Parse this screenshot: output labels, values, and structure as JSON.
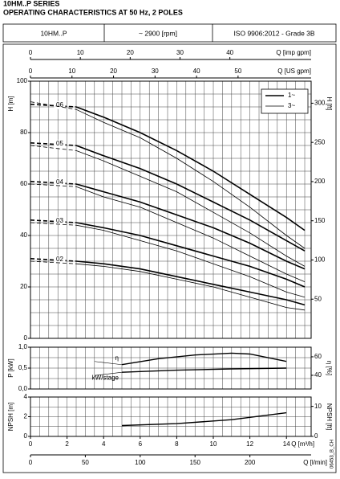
{
  "header": {
    "title": "10HM..P SERIES",
    "subtitle": "OPERATING CHARACTERISTICS AT 50 Hz, 2 POLES",
    "info": [
      "10HM..P",
      "~ 2900 [rpm]",
      "ISO 9906:2012 - Grade 3B"
    ],
    "code": "06453_B_CH"
  },
  "chart_data": [
    {
      "type": "line",
      "ylabel": "H [m]",
      "y2label": "H [ft]",
      "xlim": [
        0,
        15.35
      ],
      "ylim": [
        0,
        100
      ],
      "yticks": [
        0,
        20,
        40,
        60,
        80,
        100
      ],
      "y2lim": [
        0,
        328.1
      ],
      "y2ticks": [
        50,
        100,
        150,
        200,
        250,
        300
      ],
      "grid": true,
      "top_axes": [
        {
          "label": "Q [imp gpm]",
          "lim": [
            0,
            56.3
          ],
          "ticks": [
            0,
            10,
            20,
            30,
            40
          ]
        },
        {
          "label": "Q [US gpm]",
          "lim": [
            0,
            67.6
          ],
          "ticks": [
            0,
            10,
            20,
            30,
            40,
            50
          ]
        }
      ],
      "legend": {
        "corner": "upper right",
        "entries": [
          {
            "name": "1~",
            "width": 1.6
          },
          {
            "name": "3~",
            "width": 0.8
          }
        ]
      },
      "color": "#000000",
      "x": [
        0,
        2.5,
        4,
        6,
        8,
        10,
        12,
        14,
        15
      ],
      "series": [
        {
          "label": "06",
          "variant": "1~",
          "dashed_until": 2.5,
          "values": [
            91,
            90,
            86,
            80,
            73,
            65,
            56,
            47,
            42
          ]
        },
        {
          "label": "06",
          "variant": "3~",
          "dashed_until": 2.5,
          "values": [
            92,
            89,
            84,
            78,
            70,
            61,
            51,
            40,
            35
          ]
        },
        {
          "label": "05",
          "variant": "1~",
          "dashed_until": 2.5,
          "values": [
            76,
            75,
            71,
            66,
            60,
            53,
            46,
            38,
            34
          ]
        },
        {
          "label": "05",
          "variant": "3~",
          "dashed_until": 2.5,
          "values": [
            75,
            73,
            69,
            63,
            57,
            49,
            41,
            32,
            28
          ]
        },
        {
          "label": "04",
          "variant": "1~",
          "dashed_until": 2.5,
          "values": [
            61,
            60,
            57,
            53,
            48,
            43,
            37,
            30,
            27
          ]
        },
        {
          "label": "04",
          "variant": "3~",
          "dashed_until": 2.5,
          "values": [
            60,
            59,
            55,
            51,
            45,
            39,
            32,
            25,
            22
          ]
        },
        {
          "label": "03",
          "variant": "1~",
          "dashed_until": 2.5,
          "values": [
            46,
            45,
            43,
            40,
            36,
            32,
            28,
            23,
            20
          ]
        },
        {
          "label": "03",
          "variant": "3~",
          "dashed_until": 2.5,
          "values": [
            45,
            44,
            42,
            38,
            34,
            29,
            24,
            18,
            16
          ]
        },
        {
          "label": "02",
          "variant": "1~",
          "dashed_until": 2.5,
          "values": [
            31,
            30,
            29,
            27,
            24,
            21,
            18,
            15,
            13
          ]
        },
        {
          "label": "02",
          "variant": "3~",
          "dashed_until": 2.5,
          "values": [
            30,
            29,
            28,
            26,
            23,
            20,
            16,
            12,
            11
          ]
        }
      ]
    },
    {
      "type": "line",
      "ylabel": "P [kW]",
      "y2label": "η [%]",
      "xlim": [
        0,
        15.35
      ],
      "ylim": [
        0,
        1
      ],
      "yticks": [
        {
          "value": 0,
          "label": "0,0"
        },
        {
          "value": 0.5,
          "label": "0,5"
        },
        {
          "value": 1,
          "label": "1,0"
        }
      ],
      "y2lim": [
        25.2,
        70.4
      ],
      "y2ticks": [
        40,
        60
      ],
      "grid": true,
      "color": "#000000",
      "series": [
        {
          "name": "η",
          "axis": "y2",
          "x": [
            5,
            7,
            9,
            11,
            12,
            14
          ],
          "values": [
            51.5,
            58,
            62,
            64,
            63,
            55
          ]
        },
        {
          "name": "kW/stage",
          "x": [
            5,
            8,
            11,
            14
          ],
          "values": [
            0.4,
            0.45,
            0.48,
            0.5
          ]
        }
      ]
    },
    {
      "type": "line",
      "ylabel": "NPSH [m]",
      "y2label": "NPSH [ft]",
      "xlim": [
        0,
        15.35
      ],
      "ylim": [
        0,
        4
      ],
      "yticks": [
        0,
        2,
        4
      ],
      "y2lim": [
        0,
        13.12
      ],
      "y2ticks": [
        0,
        10
      ],
      "grid": true,
      "color": "#000000",
      "xlabel": "Q [m³/h]",
      "xticks": [
        0,
        2,
        4,
        6,
        8,
        10,
        12,
        14
      ],
      "bottom_axis": {
        "label": "Q [l/min]",
        "lim": [
          0,
          255.8
        ],
        "ticks": [
          0,
          50,
          100,
          150,
          200
        ]
      },
      "series": [
        {
          "name": "NPSH",
          "x": [
            5,
            8,
            11,
            14
          ],
          "values": [
            1.1,
            1.3,
            1.7,
            2.4
          ]
        }
      ]
    }
  ]
}
